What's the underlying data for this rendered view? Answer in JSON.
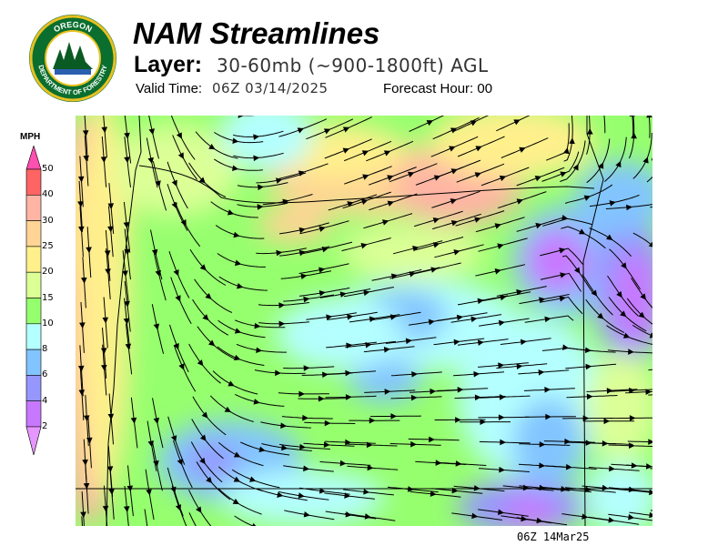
{
  "logo": {
    "text_top": "OREGON",
    "text_bottom": "DEPARTMENT OF FORESTRY"
  },
  "header": {
    "title": "NAM Streamlines",
    "layer_label": "Layer:",
    "layer_value": "30-60mb (~900-1800ft) AGL",
    "valid_label": "Valid Time:",
    "valid_value": "06Z 03/14/2025",
    "forecast_label": "Forecast Hour: 00"
  },
  "legend": {
    "unit": "MPH",
    "ticks": [
      "50",
      "40",
      "30",
      "25",
      "20",
      "15",
      "10",
      "8",
      "6",
      "4",
      "2"
    ],
    "colors": [
      "#ff4fb0",
      "#ff6464",
      "#ffb4a4",
      "#ffd494",
      "#fff08c",
      "#dcff96",
      "#96ff6e",
      "#b4ffff",
      "#82c4ff",
      "#9696ff",
      "#c878ff",
      "#e696ff"
    ]
  },
  "footer": {
    "label": "06Z 14Mar25"
  }
}
